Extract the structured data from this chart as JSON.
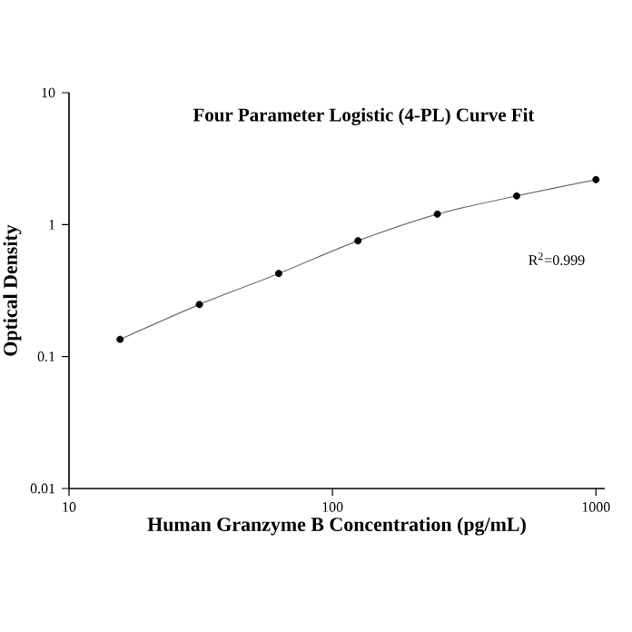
{
  "chart_data": {
    "type": "scatter",
    "title": "Four Parameter Logistic (4-PL) Curve Fit",
    "xlabel": "Human Granzyme B Concentration (pg/mL)",
    "ylabel": "Optical Density",
    "log": "xy",
    "xlim": [
      10,
      1080
    ],
    "ylim": [
      0.01,
      10
    ],
    "xticks": [
      10,
      100,
      1000
    ],
    "yticks": [
      0.01,
      0.1,
      1,
      10
    ],
    "grid": false,
    "annotations": [
      "R$^{2}$=0.999"
    ],
    "series": [
      {
        "type": "line",
        "color": "#707070",
        "marker": "none",
        "line_style": "solid",
        "x": [
          15.625,
          31.25,
          62.5,
          125,
          250,
          500,
          1000
        ],
        "values": [
          0.135,
          0.248,
          0.426,
          0.754,
          1.2,
          1.65,
          2.19
        ]
      },
      {
        "color": "#000000",
        "marker": "circle",
        "x": [
          15.625,
          31.25,
          62.5,
          125,
          250,
          500,
          1000
        ],
        "values": [
          0.135,
          0.248,
          0.426,
          0.754,
          1.2,
          1.65,
          2.19
        ]
      }
    ]
  }
}
